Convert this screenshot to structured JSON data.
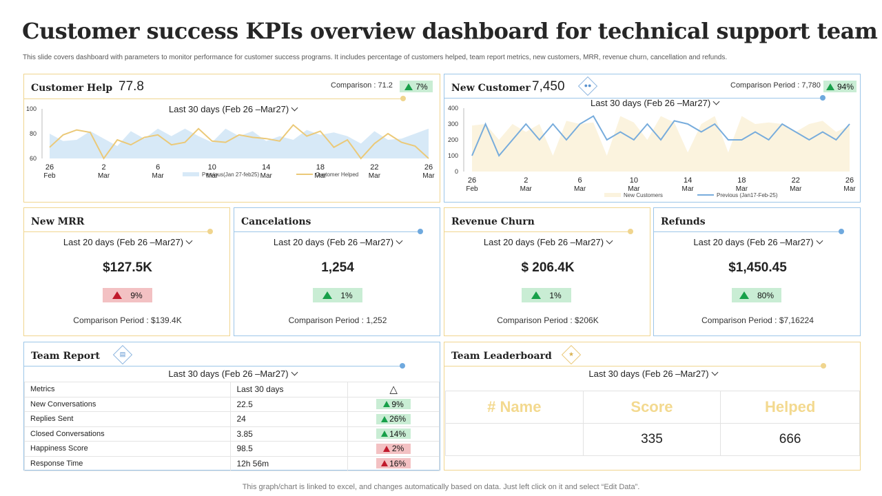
{
  "header": {
    "title": "Customer success KPIs overview dashboard for technical support team",
    "subtitle": "This slide covers dashboard with parameters to monitor performance for customer success programs. It includes percentage of customers helped, team report metrics, new customers, MRR, revenue churn, cancellation and refunds."
  },
  "footer": {
    "note": "This graph/chart is linked to excel,  and changes automatically based on data. Just left click on it and select “Edit Data”."
  },
  "customer_help": {
    "title": "Customer Help",
    "value": "77.8",
    "comparison": "Comparison : 71.2",
    "change": "7%",
    "period": "Last 30 days (Feb 26 –Mar27)"
  },
  "new_customer": {
    "title": "New Customer",
    "value": "7,450",
    "comparison": "Comparison Period : 7,780",
    "change": "94%",
    "period": "Last 30 days (Feb 26 –Mar27)"
  },
  "kpis": [
    {
      "title": "New MRR",
      "period": "Last 20 days (Feb 26 –Mar27)",
      "value": "$127.5K",
      "change": "9%",
      "direction": "down",
      "comparison": "Comparison  Period : $139.4K"
    },
    {
      "title": "Cancelations",
      "period": "Last 20 days (Feb 26 –Mar27)",
      "value": "1,254",
      "change": "1%",
      "direction": "up",
      "comparison": "Comparison  Period : 1,252"
    },
    {
      "title": "Revenue Churn",
      "period": "Last 20 days (Feb 26 –Mar27)",
      "value": "$ 206.4K",
      "change": "1%",
      "direction": "up",
      "comparison": "Comparison  Period : $206K"
    },
    {
      "title": "Refunds",
      "period": "Last 20 days (Feb 26 –Mar27)",
      "value": "$1,450.45",
      "change": "80%",
      "direction": "up",
      "comparison": "Comparison  Period : $7,16224"
    }
  ],
  "team_report": {
    "title": "Team Report",
    "period": "Last 30 days (Feb 26 –Mar27)",
    "columns": [
      "Metrics",
      "Last 30 days",
      "△"
    ],
    "rows": [
      {
        "metric": "New Conversations",
        "value": "22.5",
        "change": "9%",
        "direction": "up"
      },
      {
        "metric": "Replies Sent",
        "value": "24",
        "change": "26%",
        "direction": "up"
      },
      {
        "metric": "Closed Conversations",
        "value": "3.85",
        "change": "14%",
        "direction": "up"
      },
      {
        "metric": "Happiness Score",
        "value": "98.5",
        "change": "2%",
        "direction": "down"
      },
      {
        "metric": "Response Time",
        "value": "12h 56m",
        "change": "16%",
        "direction": "down"
      }
    ]
  },
  "team_leaderboard": {
    "title": "Team Leaderboard",
    "period": "Last 30 days (Feb 26 –Mar27)",
    "columns": [
      "# Name",
      "Score",
      "Helped"
    ],
    "row": [
      "",
      "335",
      "666"
    ]
  },
  "colors": {
    "gold": "#f0d58e",
    "blue": "#9cc6e8",
    "up": "#c9edd4",
    "down": "#f3c1c3"
  },
  "chart_data": [
    {
      "type": "area",
      "name": "customer-help-chart",
      "x": [
        "26 Feb",
        "27 Feb",
        "28 Feb",
        "1 Mar",
        "2 Mar",
        "3 Mar",
        "4 Mar",
        "5 Mar",
        "6 Mar",
        "7 Mar",
        "8 Mar",
        "9 Mar",
        "10 Mar",
        "11 Mar",
        "12 Mar",
        "13 Mar",
        "14 Mar",
        "15 Mar",
        "16 Mar",
        "17 Mar",
        "18 Mar",
        "19 Mar",
        "20 Mar",
        "21 Mar",
        "22 Mar",
        "23 Mar",
        "24 Mar",
        "25 Mar",
        "26 Mar"
      ],
      "xticks": [
        [
          "26",
          "Feb"
        ],
        [
          "2",
          "Mar"
        ],
        [
          "6",
          "Mar"
        ],
        [
          "10",
          "Mar"
        ],
        [
          "14",
          "Mar"
        ],
        [
          "18",
          "Mar"
        ],
        [
          "22",
          "Mar"
        ],
        [
          "26",
          "Mar"
        ]
      ],
      "ylim": [
        60,
        100
      ],
      "yticks": [
        60,
        80,
        100
      ],
      "series": [
        {
          "name": "Previous(Jan 27-feb25)",
          "kind": "area",
          "color": "#d7e9f7",
          "values": [
            80,
            74,
            75,
            82,
            76,
            70,
            82,
            76,
            84,
            78,
            84,
            78,
            73,
            84,
            78,
            82,
            74,
            78,
            75,
            83,
            79,
            81,
            78,
            72,
            82,
            75,
            76,
            80,
            84
          ]
        },
        {
          "name": "Customer Helped",
          "kind": "line",
          "color": "#ebc978",
          "values": [
            69,
            79,
            83,
            81,
            60,
            75,
            71,
            77,
            79,
            71,
            73,
            84,
            74,
            73,
            79,
            77,
            76,
            74,
            87,
            78,
            82,
            69,
            75,
            60,
            72,
            80,
            73,
            70,
            60
          ]
        }
      ],
      "grid": false,
      "legend": "bottom"
    },
    {
      "type": "area",
      "name": "new-customer-chart",
      "x": [
        "26 Feb",
        "27 Feb",
        "28 Feb",
        "1 Mar",
        "2 Mar",
        "3 Mar",
        "4 Mar",
        "5 Mar",
        "6 Mar",
        "7 Mar",
        "8 Mar",
        "9 Mar",
        "10 Mar",
        "11 Mar",
        "12 Mar",
        "13 Mar",
        "14 Mar",
        "15 Mar",
        "16 Mar",
        "17 Mar",
        "18 Mar",
        "19 Mar",
        "20 Mar",
        "21 Mar",
        "22 Mar",
        "23 Mar",
        "24 Mar",
        "25 Mar",
        "26 Mar"
      ],
      "xticks": [
        [
          "26",
          "Feb"
        ],
        [
          "2",
          "Mar"
        ],
        [
          "6",
          "Mar"
        ],
        [
          "10",
          "Mar"
        ],
        [
          "14",
          "Mar"
        ],
        [
          "18",
          "Mar"
        ],
        [
          "22",
          "Mar"
        ],
        [
          "26",
          "Mar"
        ]
      ],
      "ylim": [
        0,
        400
      ],
      "yticks": [
        0,
        100,
        200,
        300,
        400
      ],
      "series": [
        {
          "name": "New Customers",
          "kind": "area",
          "color": "#fbf3de",
          "values": [
            290,
            300,
            200,
            300,
            250,
            300,
            100,
            320,
            300,
            310,
            100,
            350,
            310,
            200,
            350,
            310,
            120,
            300,
            350,
            120,
            350,
            300,
            310,
            300,
            250,
            300,
            320,
            250,
            290
          ]
        },
        {
          "name": "Previous (Jan17-Feb-25)",
          "kind": "line",
          "color": "#77acdc",
          "values": [
            100,
            300,
            100,
            200,
            300,
            200,
            300,
            200,
            300,
            350,
            200,
            250,
            200,
            300,
            200,
            320,
            300,
            250,
            300,
            200,
            200,
            250,
            200,
            300,
            250,
            200,
            250,
            200,
            300
          ]
        }
      ],
      "grid": false,
      "legend": "bottom"
    }
  ]
}
